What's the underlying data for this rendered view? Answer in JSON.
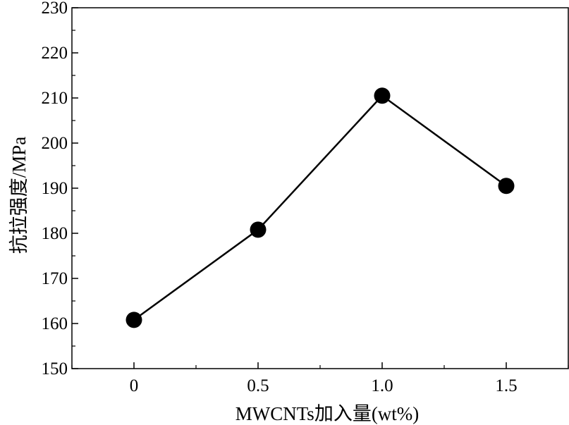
{
  "chart_data": {
    "type": "line",
    "title": "",
    "xlabel": "MWCNTs加入量(wt%)",
    "ylabel": "抗拉强度/MPa",
    "x": [
      0,
      0.5,
      1.0,
      1.5
    ],
    "xticks": [
      0,
      0.5,
      1.0,
      1.5
    ],
    "xtick_labels": [
      "0",
      "0.5",
      "1.0",
      "1.5"
    ],
    "xlim": [
      -0.25,
      1.75
    ],
    "ylim": [
      150,
      230
    ],
    "yticks": [
      150,
      160,
      170,
      180,
      190,
      200,
      210,
      220,
      230
    ],
    "ytick_labels": [
      "150",
      "160",
      "170",
      "180",
      "190",
      "200",
      "210",
      "220",
      "230"
    ],
    "series": [
      {
        "values": [
          160.8,
          180.8,
          210.5,
          190.5
        ],
        "color": "#000000",
        "marker": "filled-circle"
      }
    ],
    "grid": false,
    "legend": "none"
  }
}
